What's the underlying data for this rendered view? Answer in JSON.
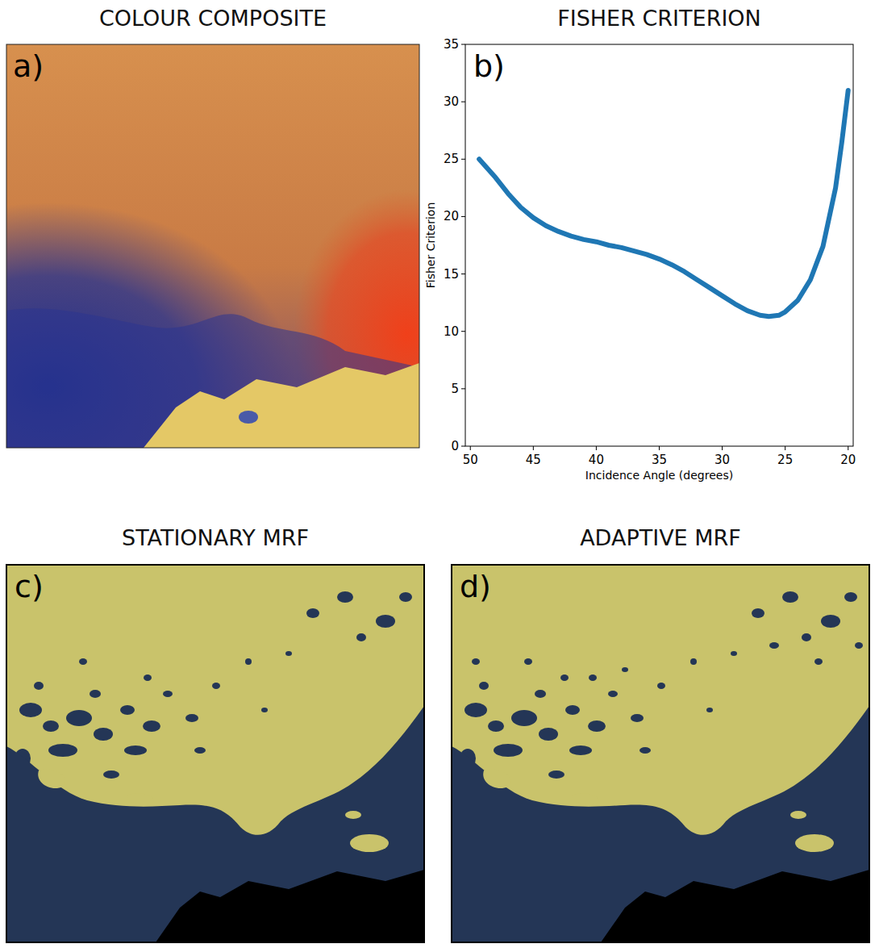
{
  "panels": {
    "a": {
      "panel_label": "a)",
      "title": "COLOUR COMPOSITE"
    },
    "c": {
      "panel_label": "c)",
      "title": "STATIONARY MRF"
    },
    "d": {
      "panel_label": "d)",
      "title": "ADAPTIVE MRF"
    }
  },
  "chart_data": {
    "type": "line",
    "title": "FISHER CRITERION",
    "panel_label": "b)",
    "x_label": "Incidence Angle (degrees)",
    "y_label": "Fisher Criterion",
    "x": [
      49.3,
      48,
      47,
      46,
      45,
      44,
      43,
      42,
      41,
      40,
      39,
      38,
      37,
      36,
      35,
      34,
      33,
      32,
      31,
      30,
      29,
      28,
      27,
      26.3,
      25.5,
      25,
      24,
      23,
      22,
      21,
      20.5,
      20
    ],
    "values": [
      25.0,
      23.4,
      22.0,
      20.8,
      19.9,
      19.2,
      18.7,
      18.3,
      18.0,
      17.8,
      17.5,
      17.3,
      17.0,
      16.7,
      16.3,
      15.8,
      15.2,
      14.5,
      13.8,
      13.1,
      12.4,
      11.8,
      11.4,
      11.3,
      11.4,
      11.7,
      12.7,
      14.5,
      17.4,
      22.5,
      26.5,
      31.0
    ],
    "color": "#1f77b4",
    "xlim": [
      50.4,
      19.6
    ],
    "ylim": [
      0,
      35
    ],
    "xticks": [
      50,
      45,
      40,
      35,
      30,
      25,
      20
    ],
    "yticks": [
      0,
      5,
      10,
      15,
      20,
      25,
      30,
      35
    ],
    "grid": false
  }
}
